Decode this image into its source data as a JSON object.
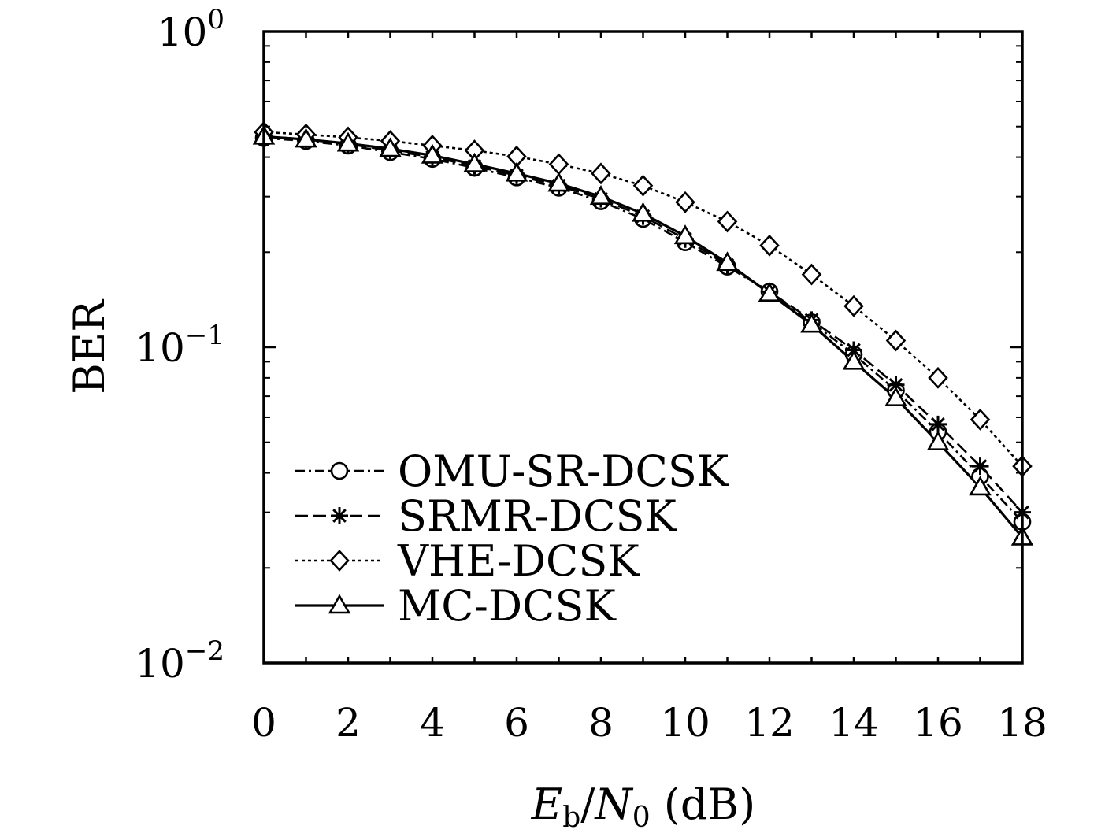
{
  "chart_data": {
    "type": "line",
    "xlabel": "E_b/N_0 (dB)",
    "xlabel_parts": {
      "e": "E",
      "b": "b",
      "slash": "/",
      "n": "N",
      "zero": "0",
      "unit": " (dB)"
    },
    "ylabel": "BER",
    "xlim": [
      0,
      18
    ],
    "ylim": [
      0.01,
      1
    ],
    "yscale": "log",
    "grid": false,
    "legend_position": "bottom-left",
    "x_ticks": [
      "0",
      "2",
      "4",
      "6",
      "8",
      "10",
      "12",
      "14",
      "16",
      "18"
    ],
    "y_ticks": [
      {
        "base": "10",
        "exp": "0",
        "value": 1
      },
      {
        "base": "10",
        "exp": "−1",
        "value": 0.1
      },
      {
        "base": "10",
        "exp": "−2",
        "value": 0.01
      }
    ],
    "x": [
      0,
      1,
      2,
      3,
      4,
      5,
      6,
      7,
      8,
      9,
      10,
      11,
      12,
      13,
      14,
      15,
      16,
      17,
      18
    ],
    "series": [
      {
        "name": "OMU-SR-DCSK",
        "marker": "circle",
        "dash": "dashdot",
        "values": [
          0.46,
          0.45,
          0.435,
          0.415,
          0.395,
          0.37,
          0.345,
          0.32,
          0.29,
          0.255,
          0.215,
          0.18,
          0.15,
          0.12,
          0.095,
          0.073,
          0.054,
          0.039,
          0.028
        ]
      },
      {
        "name": "SRMR-DCSK",
        "marker": "star",
        "dash": "dashed",
        "values": [
          0.465,
          0.456,
          0.44,
          0.42,
          0.4,
          0.375,
          0.35,
          0.325,
          0.295,
          0.26,
          0.22,
          0.182,
          0.15,
          0.122,
          0.098,
          0.076,
          0.057,
          0.042,
          0.03
        ]
      },
      {
        "name": "VHE-DCSK",
        "marker": "diamond",
        "dash": "dotted",
        "values": [
          0.48,
          0.472,
          0.462,
          0.45,
          0.435,
          0.42,
          0.402,
          0.38,
          0.355,
          0.325,
          0.288,
          0.25,
          0.21,
          0.17,
          0.135,
          0.105,
          0.08,
          0.059,
          0.042
        ]
      },
      {
        "name": "MC-DCSK",
        "marker": "triangle",
        "dash": "solid",
        "values": [
          0.465,
          0.455,
          0.442,
          0.425,
          0.405,
          0.38,
          0.355,
          0.33,
          0.3,
          0.265,
          0.225,
          0.185,
          0.148,
          0.118,
          0.09,
          0.069,
          0.05,
          0.036,
          0.025
        ]
      }
    ]
  }
}
